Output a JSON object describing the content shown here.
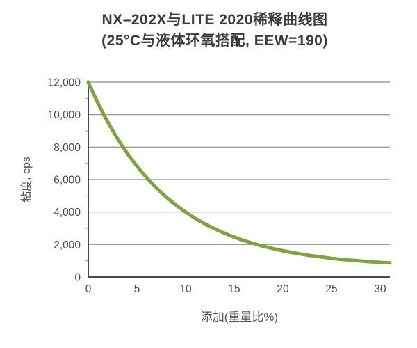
{
  "colors": {
    "background": "#ffffff",
    "curve": "#80a33f",
    "gridline": "#8c8c8c",
    "axis": "#4a4a4a",
    "minor_tick": "#a0a0a0",
    "title_text": "#3b3b3b",
    "tick_text": "#4a4a4a",
    "axis_label_text": "#555555"
  },
  "chart_data": {
    "type": "line",
    "title": "NX–202X与LITE 2020稀释曲线图",
    "subtitle": "(25°C与液体环氧搭配, EEW=190)",
    "xlabel": "添加(重量比%)",
    "ylabel": "粘度, cps",
    "xlim": [
      0,
      31
    ],
    "ylim": [
      0,
      12000
    ],
    "grid": "horizontal-only",
    "legend_position": "none",
    "x_ticks": [
      {
        "value": 0,
        "label": "0"
      },
      {
        "value": 5,
        "label": "5"
      },
      {
        "value": 10,
        "label": "10"
      },
      {
        "value": 15,
        "label": "15"
      },
      {
        "value": 20,
        "label": "20"
      },
      {
        "value": 25,
        "label": "25"
      },
      {
        "value": 30,
        "label": "30"
      }
    ],
    "y_ticks": [
      {
        "value": 0,
        "label": "0"
      },
      {
        "value": 2000,
        "label": "2,000"
      },
      {
        "value": 4000,
        "label": "4,000"
      },
      {
        "value": 6000,
        "label": "6,000"
      },
      {
        "value": 8000,
        "label": "8,000"
      },
      {
        "value": 10000,
        "label": "10,000"
      },
      {
        "value": 12000,
        "label": "12,000"
      }
    ],
    "y_minor_ticks": [
      1000,
      3000,
      5000,
      7000,
      9000,
      11000
    ],
    "series": [
      {
        "name": "NX-202X与LITE 2020稀释曲线",
        "color": "#80a33f",
        "x": [
          0,
          0.5,
          1,
          1.5,
          2,
          2.5,
          3,
          3.5,
          4,
          4.5,
          5,
          5.5,
          6,
          6.5,
          7,
          7.5,
          8,
          8.5,
          9,
          9.5,
          10,
          10.5,
          11,
          11.5,
          12,
          12.5,
          13,
          13.5,
          14,
          14.5,
          15,
          15.5,
          16,
          16.5,
          17,
          17.5,
          18,
          18.5,
          19,
          19.5,
          20,
          20.5,
          21,
          21.5,
          22,
          22.5,
          23,
          23.5,
          24,
          24.5,
          25,
          25.5,
          26,
          26.5,
          27,
          27.5,
          28,
          28.5,
          29,
          29.5,
          30,
          30.5,
          31
        ],
        "y": [
          12000,
          11330,
          10700,
          10110,
          9550,
          9030,
          8530,
          8070,
          7630,
          7210,
          6830,
          6460,
          6120,
          5790,
          5490,
          5200,
          4930,
          4680,
          4440,
          4210,
          4000,
          3800,
          3610,
          3440,
          3270,
          3110,
          2970,
          2830,
          2700,
          2570,
          2460,
          2350,
          2250,
          2150,
          2060,
          1970,
          1890,
          1820,
          1750,
          1680,
          1620,
          1560,
          1500,
          1450,
          1400,
          1350,
          1310,
          1270,
          1230,
          1190,
          1150,
          1120,
          1090,
          1060,
          1040,
          1010,
          990,
          960,
          940,
          920,
          900,
          890,
          870
        ]
      }
    ]
  }
}
